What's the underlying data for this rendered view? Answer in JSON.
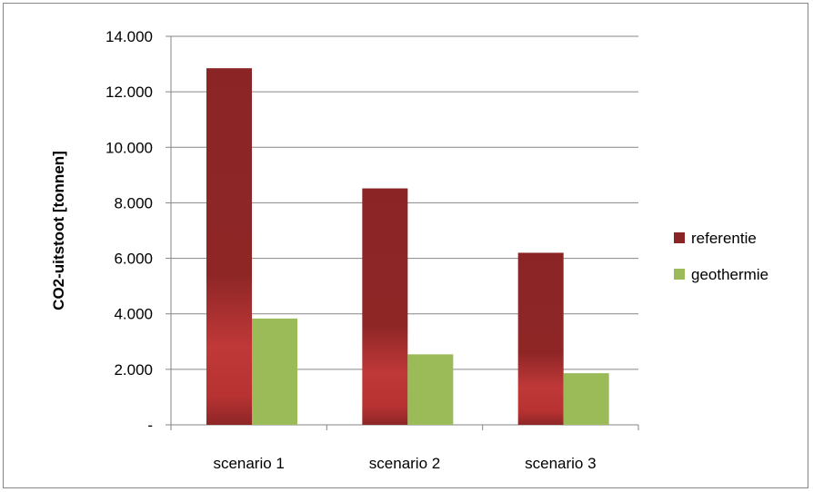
{
  "chart_data": {
    "type": "bar",
    "ylabel": "CO2-uitstoot [tonnen]",
    "categories": [
      "scenario 1",
      "scenario 2",
      "scenario 3"
    ],
    "series": [
      {
        "name": "referentie",
        "values": [
          12850,
          8520,
          6200
        ],
        "color": "#8b2525"
      },
      {
        "name": "geothermie",
        "values": [
          3830,
          2540,
          1860
        ],
        "color": "#9bbb59"
      }
    ],
    "ylim": [
      0,
      14000
    ],
    "y_ticks": [
      {
        "value": 0,
        "label": "-"
      },
      {
        "value": 2000,
        "label": "2.000"
      },
      {
        "value": 4000,
        "label": "4.000"
      },
      {
        "value": 6000,
        "label": "6.000"
      },
      {
        "value": 8000,
        "label": "8.000"
      },
      {
        "value": 10000,
        "label": "10.000"
      },
      {
        "value": 12000,
        "label": "12.000"
      },
      {
        "value": 14000,
        "label": "14.000"
      }
    ],
    "grid": true,
    "legend_position": "right"
  }
}
